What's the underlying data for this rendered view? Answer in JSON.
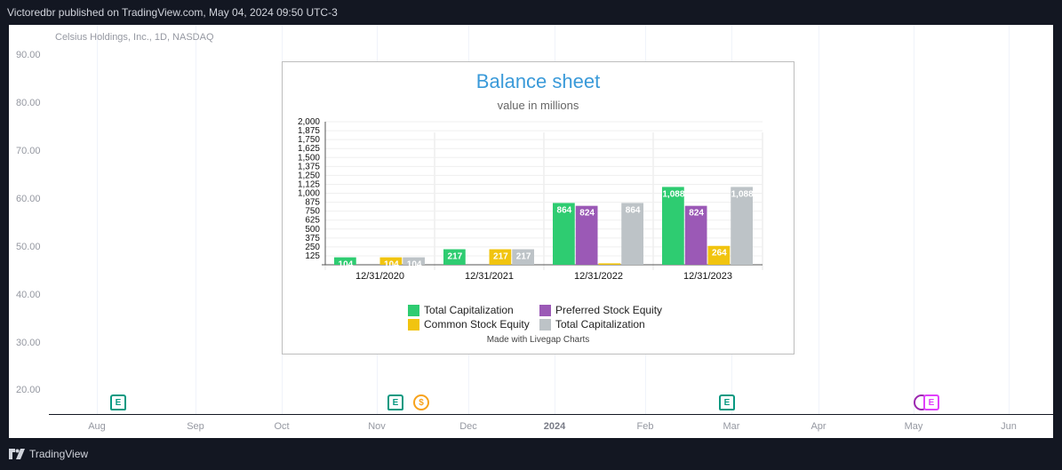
{
  "header": {
    "publisher_text": "Victoredbr published on TradingView.com, May 04, 2024 09:50 UTC-3"
  },
  "instrument": {
    "label": "Celsius Holdings, Inc., 1D, NASDAQ"
  },
  "price_axis": {
    "labels": [
      "90.00",
      "80.00",
      "70.00",
      "60.00",
      "50.00",
      "40.00",
      "30.00",
      "20.00"
    ]
  },
  "time_axis": {
    "labels": [
      "Aug",
      "Sep",
      "Oct",
      "Nov",
      "Dec",
      "2024",
      "Feb",
      "Mar",
      "Apr",
      "May",
      "Jun"
    ]
  },
  "events": [
    {
      "type": "earnings",
      "icon": "earnings-icon",
      "glyph": "E"
    },
    {
      "type": "earnings",
      "icon": "earnings-icon",
      "glyph": "E"
    },
    {
      "type": "dividend",
      "icon": "dividend-icon",
      "glyph": "$"
    },
    {
      "type": "earnings",
      "icon": "earnings-icon",
      "glyph": "E"
    },
    {
      "type": "split",
      "icon": "split-icon",
      "glyph": ""
    },
    {
      "type": "earnings-upcoming",
      "icon": "earnings-icon",
      "glyph": "E"
    }
  ],
  "chart_data": {
    "type": "bar",
    "title": "Balance sheet",
    "subtitle": "value in millions",
    "categories": [
      "12/31/2020",
      "12/31/2021",
      "12/31/2022",
      "12/31/2023"
    ],
    "series": [
      {
        "name": "Total Capitalization",
        "color": "#2ecc71",
        "values": [
          104,
          217,
          864,
          1088
        ],
        "labels": [
          "104",
          "217",
          "864",
          "1,088"
        ]
      },
      {
        "name": "Preferred Stock Equity",
        "color": "#9b59b6",
        "values": [
          0,
          0,
          824,
          824
        ],
        "labels": [
          "",
          "",
          "824",
          "824"
        ]
      },
      {
        "name": "Common Stock Equity",
        "color": "#f1c40f",
        "values": [
          104,
          217,
          20,
          264
        ],
        "labels": [
          "104",
          "217",
          "",
          "264"
        ]
      },
      {
        "name": "Total Capitalization",
        "color": "#bdc3c7",
        "values": [
          104,
          217,
          864,
          1088
        ],
        "labels": [
          "104",
          "217",
          "864",
          "1,088"
        ]
      }
    ],
    "y_ticks": [
      "125",
      "250",
      "375",
      "500",
      "625",
      "750",
      "875",
      "1,000",
      "1,125",
      "1,250",
      "1,375",
      "1,500",
      "1,625",
      "1,750",
      "1,875",
      "2,000"
    ],
    "ylim": [
      0,
      2000
    ],
    "grid": true,
    "legend_position": "bottom"
  },
  "credit": "Made with Livegap Charts",
  "footer": {
    "brand": "TradingView"
  }
}
